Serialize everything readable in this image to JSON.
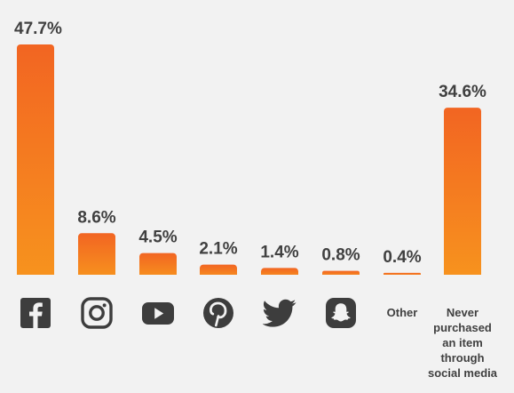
{
  "theme": {
    "bar_top": "#f26522",
    "bar_bottom": "#f7931e",
    "text": "#404040",
    "icon": "#3d3d3d",
    "background": "#f2f2f2"
  },
  "chart_data": {
    "type": "bar",
    "title": "",
    "xlabel": "",
    "ylabel": "",
    "ylim": [
      0,
      47.7
    ],
    "grid": false,
    "categories": [
      "facebook-icon",
      "instagram-icon",
      "youtube-icon",
      "pinterest-icon",
      "twitter-icon",
      "snapchat-icon",
      "Other",
      "Never purchased an item through social media"
    ],
    "values": [
      47.7,
      8.6,
      4.5,
      2.1,
      1.4,
      0.8,
      0.4,
      34.6
    ],
    "value_labels": [
      "47.7%",
      "8.6%",
      "4.5%",
      "2.1%",
      "1.4%",
      "0.8%",
      "0.4%",
      "34.6%"
    ],
    "category_labels": [
      {
        "kind": "icon",
        "icon": "facebook-icon"
      },
      {
        "kind": "icon",
        "icon": "instagram-icon"
      },
      {
        "kind": "icon",
        "icon": "youtube-icon"
      },
      {
        "kind": "icon",
        "icon": "pinterest-icon"
      },
      {
        "kind": "icon",
        "icon": "twitter-icon"
      },
      {
        "kind": "icon",
        "icon": "snapchat-icon"
      },
      {
        "kind": "text",
        "lines": [
          "Other"
        ]
      },
      {
        "kind": "text",
        "lines": [
          "Never",
          "purchased",
          "an item",
          "through",
          "social media"
        ]
      }
    ]
  }
}
